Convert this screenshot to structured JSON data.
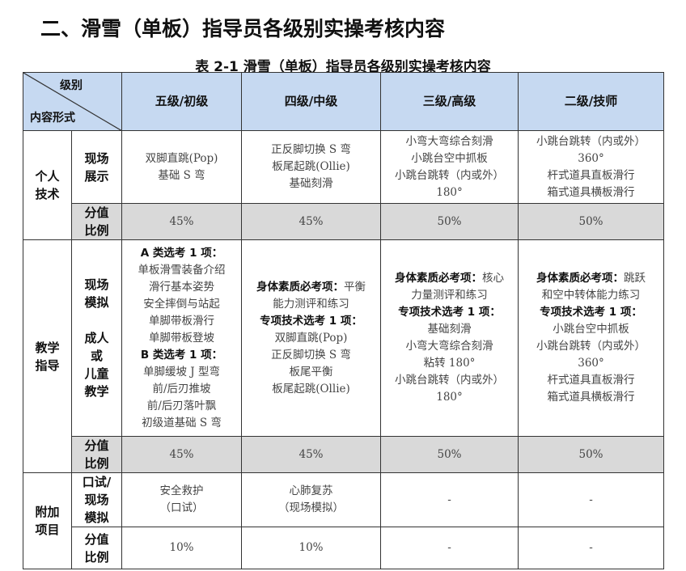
{
  "heading": "二、滑雪（单板）指导员各级别实操考核内容",
  "caption": "表 2-1 滑雪（单板）指导员各级别实操考核内容",
  "header": {
    "corner_top": "级别",
    "corner_bottom": "内容形式",
    "levels": [
      "五级/初级",
      "四级/中级",
      "三级/高级",
      "二级/技师"
    ]
  },
  "sections": [
    {
      "category": "个人\n技术",
      "rows": [
        {
          "label": "现场\n展示",
          "cells": [
            [
              {
                "t": "双脚直跳(Pop)"
              },
              {
                "t": "基础 S 弯"
              }
            ],
            [
              {
                "t": "正反脚切换 S 弯"
              },
              {
                "t": "板尾起跳(Ollie)"
              },
              {
                "t": "基础刻滑"
              }
            ],
            [
              {
                "t": "小弯大弯综合刻滑"
              },
              {
                "t": "小跳台空中抓板"
              },
              {
                "t": "小跳台跳转（内或外）"
              },
              {
                "t": "180°"
              }
            ],
            [
              {
                "t": "小跳台跳转（内或外）"
              },
              {
                "t": "360°"
              },
              {
                "t": "杆式道具直板滑行"
              },
              {
                "t": "箱式道具横板滑行"
              }
            ]
          ]
        },
        {
          "label": "分值\n比例",
          "score": true,
          "cells": [
            [
              {
                "t": "45%"
              }
            ],
            [
              {
                "t": "45%"
              }
            ],
            [
              {
                "t": "50%"
              }
            ],
            [
              {
                "t": "50%"
              }
            ]
          ]
        }
      ]
    },
    {
      "category": "教学\n指导",
      "rows": [
        {
          "label": "现场\n模拟\n\n成人\n或\n儿童\n教学",
          "cells": [
            [
              {
                "b": "A 类选考 1 项："
              },
              {
                "t": "单板滑雪装备介绍"
              },
              {
                "t": "滑行基本姿势"
              },
              {
                "t": "安全摔倒与站起"
              },
              {
                "t": "单脚带板滑行"
              },
              {
                "t": "单脚带板登坡"
              },
              {
                "b": "B 类选考 1 项："
              },
              {
                "t": "单脚缓坡 J 型弯"
              },
              {
                "t": "前/后刃推坡"
              },
              {
                "t": "前/后刃落叶飘"
              },
              {
                "t": "初级道基础 S 弯"
              }
            ],
            [
              {
                "b": "身体素质必考项：",
                "t": "平衡"
              },
              {
                "t": "能力测评和练习"
              },
              {
                "b": "专项技术选考 1 项："
              },
              {
                "t": "双脚直跳(Pop)"
              },
              {
                "t": "正反脚切换 S 弯"
              },
              {
                "t": "板尾平衡"
              },
              {
                "t": "板尾起跳(Ollie)"
              }
            ],
            [
              {
                "b": "身体素质必考项：",
                "t": "核心"
              },
              {
                "t": "力量测评和练习"
              },
              {
                "b": "专项技术选考 1 项："
              },
              {
                "t": "基础刻滑"
              },
              {
                "t": "小弯大弯综合刻滑"
              },
              {
                "t": "粘转 180°"
              },
              {
                "t": "小跳台跳转（内或外）"
              },
              {
                "t": "180°"
              }
            ],
            [
              {
                "b": "身体素质必考项：",
                "t": "跳跃"
              },
              {
                "t": "和空中转体能力练习"
              },
              {
                "b": "专项技术选考 1 项："
              },
              {
                "t": "小跳台空中抓板"
              },
              {
                "t": "小跳台跳转（内或外）"
              },
              {
                "t": "360°"
              },
              {
                "t": "杆式道具直板滑行"
              },
              {
                "t": "箱式道具横板滑行"
              }
            ]
          ]
        },
        {
          "label": "分值\n比例",
          "score": true,
          "cells": [
            [
              {
                "t": "45%"
              }
            ],
            [
              {
                "t": "45%"
              }
            ],
            [
              {
                "t": "50%"
              }
            ],
            [
              {
                "t": "50%"
              }
            ]
          ]
        }
      ]
    },
    {
      "category": "附加\n项目",
      "rows": [
        {
          "label": "口试/\n现场\n模拟",
          "cells": [
            [
              {
                "t": "安全救护"
              },
              {
                "t": "（口试）"
              }
            ],
            [
              {
                "t": "心肺复苏"
              },
              {
                "t": "（现场模拟）"
              }
            ],
            [
              {
                "t": "-"
              }
            ],
            [
              {
                "t": "-"
              }
            ]
          ]
        },
        {
          "label": "分值\n比例",
          "cells": [
            [
              {
                "t": "10%"
              }
            ],
            [
              {
                "t": "10%"
              }
            ],
            [
              {
                "t": "-"
              }
            ],
            [
              {
                "t": "-"
              }
            ]
          ]
        }
      ]
    }
  ],
  "colors": {
    "header_bg": "#c6d9f1",
    "score_bg": "#d9d9d9",
    "border": "#333333"
  }
}
